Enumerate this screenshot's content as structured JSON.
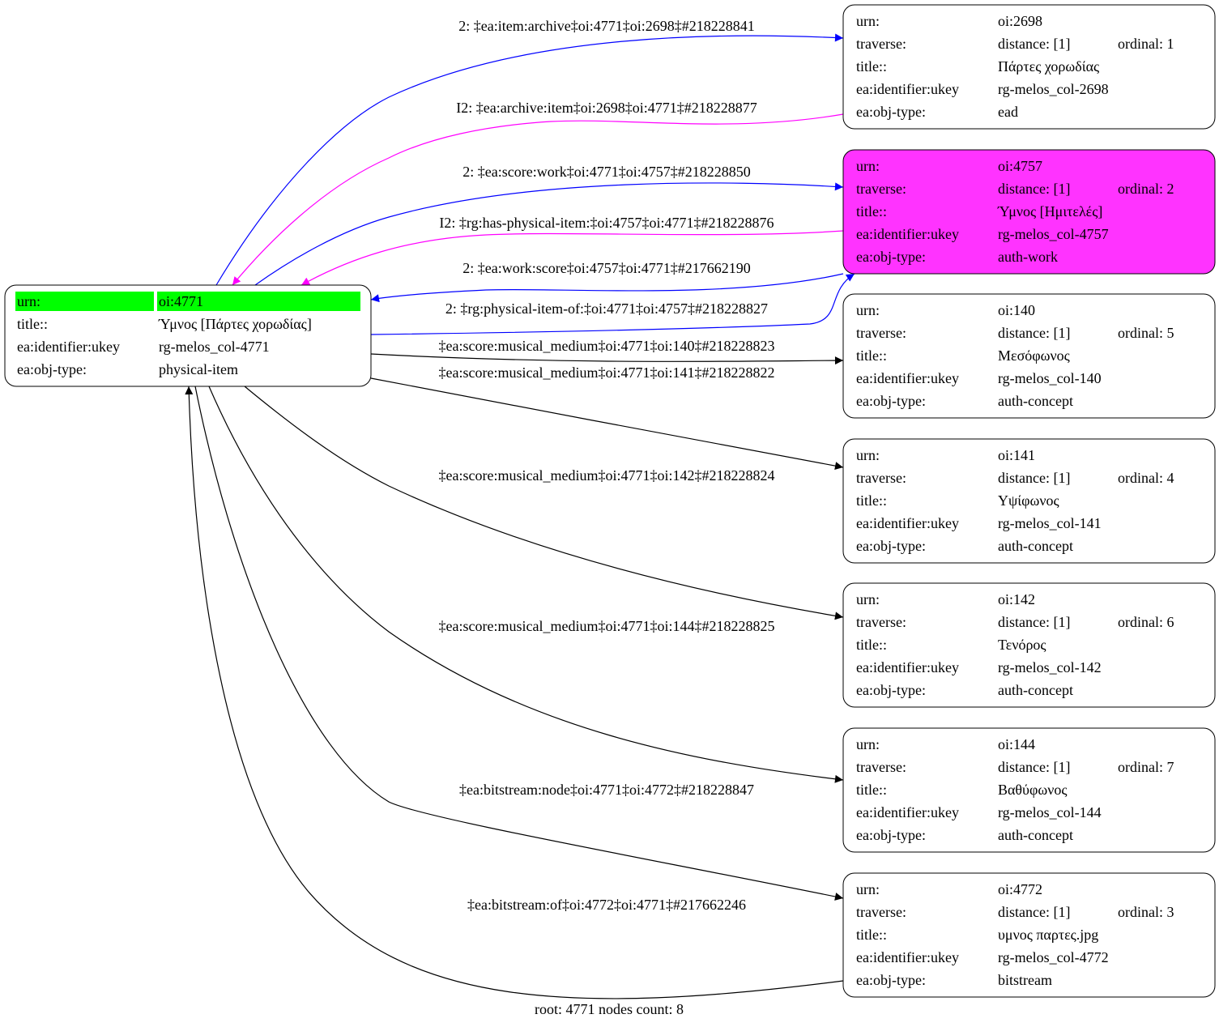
{
  "colors": {
    "blue": "#0000ff",
    "magenta": "#ff00ff",
    "black": "#000000",
    "root_highlight": "#00ff00",
    "selected_fill": "#ff33ff"
  },
  "root": {
    "rows": [
      {
        "key": "urn:",
        "value": "oi:4771"
      },
      {
        "key": "title::",
        "value": "Ύμνος [Πάρτες χορωδίας]"
      },
      {
        "key": "ea:identifier:ukey",
        "value": "rg-melos_col-4771"
      },
      {
        "key": "ea:obj-type:",
        "value": "physical-item"
      }
    ]
  },
  "nodes": [
    {
      "urn": "oi:2698",
      "distance": "distance: [1]",
      "ordinal": "ordinal: 1",
      "title": "Πάρτες χορωδίας",
      "ukey": "rg-melos_col-2698",
      "type": "ead",
      "highlighted": false
    },
    {
      "urn": "oi:4757",
      "distance": "distance: [1]",
      "ordinal": "ordinal: 2",
      "title": "Ύμνος [Ημιτελές]",
      "ukey": "rg-melos_col-4757",
      "type": "auth-work",
      "highlighted": true
    },
    {
      "urn": "oi:140",
      "distance": "distance: [1]",
      "ordinal": "ordinal: 5",
      "title": "Μεσόφωνος",
      "ukey": "rg-melos_col-140",
      "type": "auth-concept",
      "highlighted": false
    },
    {
      "urn": "oi:141",
      "distance": "distance: [1]",
      "ordinal": "ordinal: 4",
      "title": "Υψίφωνος",
      "ukey": "rg-melos_col-141",
      "type": "auth-concept",
      "highlighted": false
    },
    {
      "urn": "oi:142",
      "distance": "distance: [1]",
      "ordinal": "ordinal: 6",
      "title": "Τενόρος",
      "ukey": "rg-melos_col-142",
      "type": "auth-concept",
      "highlighted": false
    },
    {
      "urn": "oi:144",
      "distance": "distance: [1]",
      "ordinal": "ordinal: 7",
      "title": "Βαθύφωνος",
      "ukey": "rg-melos_col-144",
      "type": "auth-concept",
      "highlighted": false
    },
    {
      "urn": "oi:4772",
      "distance": "distance: [1]",
      "ordinal": "ordinal: 3",
      "title": "υμνος παρτες.jpg",
      "ukey": "rg-melos_col-4772",
      "type": "bitstream",
      "highlighted": false
    }
  ],
  "node_keys": {
    "urn": "urn:",
    "traverse": "traverse:",
    "title": "title::",
    "ukey": "ea:identifier:ukey",
    "type": "ea:obj-type:"
  },
  "edges": [
    {
      "label": "2: ‡ea:item:archive‡oi:4771‡oi:2698‡#218228841",
      "color": "blue"
    },
    {
      "label": "I2: ‡ea:archive:item‡oi:2698‡oi:4771‡#218228877",
      "color": "magenta"
    },
    {
      "label": "2: ‡ea:score:work‡oi:4771‡oi:4757‡#218228850",
      "color": "blue"
    },
    {
      "label": "I2: ‡rg:has-physical-item:‡oi:4757‡oi:4771‡#218228876",
      "color": "magenta"
    },
    {
      "label": "2: ‡ea:work:score‡oi:4757‡oi:4771‡#217662190",
      "color": "blue"
    },
    {
      "label": "2: ‡rg:physical-item-of:‡oi:4771‡oi:4757‡#218228827",
      "color": "blue"
    },
    {
      "label": "‡ea:score:musical_medium‡oi:4771‡oi:140‡#218228823",
      "color": "black"
    },
    {
      "label": "‡ea:score:musical_medium‡oi:4771‡oi:141‡#218228822",
      "color": "black"
    },
    {
      "label": "‡ea:score:musical_medium‡oi:4771‡oi:142‡#218228824",
      "color": "black"
    },
    {
      "label": "‡ea:score:musical_medium‡oi:4771‡oi:144‡#218228825",
      "color": "black"
    },
    {
      "label": "‡ea:bitstream:node‡oi:4771‡oi:4772‡#218228847",
      "color": "black"
    },
    {
      "label": "‡ea:bitstream:of‡oi:4772‡oi:4771‡#217662246",
      "color": "black"
    }
  ],
  "footer": "root: 4771 nodes count: 8"
}
